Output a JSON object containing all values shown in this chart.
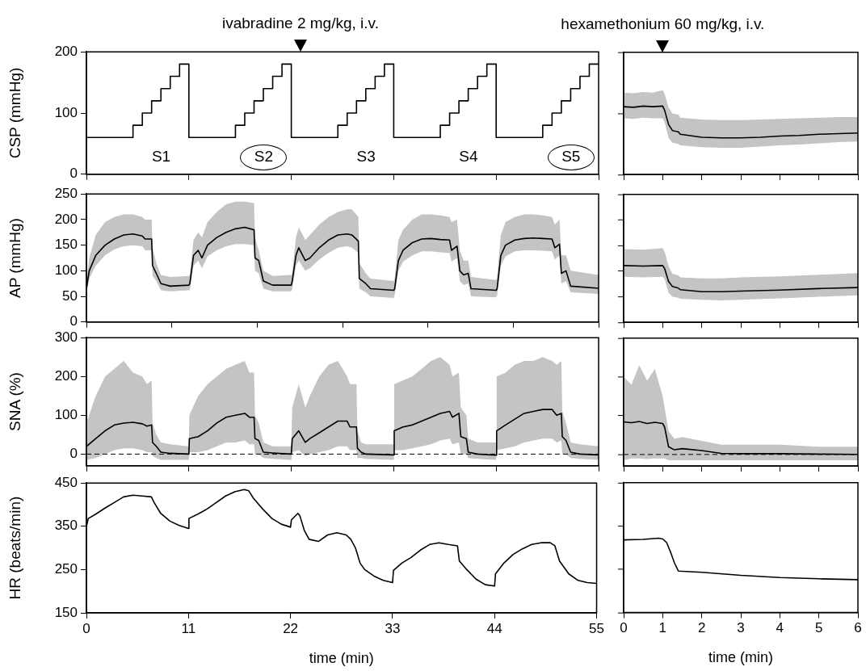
{
  "chart_data": [
    {
      "type": "step",
      "ylabel": "CSP (mmHg)",
      "xlim": [
        0,
        55
      ],
      "xticks": [
        0,
        11,
        22,
        33,
        44,
        55
      ],
      "ylim": [
        0,
        200
      ],
      "yticks": [
        0,
        100,
        200
      ],
      "tick_labels": "y",
      "grid": false,
      "legend": false,
      "marker": "none",
      "x": [
        0,
        5,
        6,
        7,
        8,
        9,
        10,
        11,
        16,
        17,
        18,
        19,
        20,
        21,
        22,
        27,
        28,
        29,
        30,
        31,
        32,
        33,
        38,
        39,
        40,
        41,
        42,
        43,
        44,
        49,
        50,
        51,
        52,
        53,
        54,
        55
      ],
      "series": [
        {
          "color": "#000000",
          "values": [
            60,
            80,
            100,
            120,
            140,
            160,
            180,
            60,
            80,
            100,
            120,
            140,
            160,
            180,
            60,
            80,
            100,
            120,
            140,
            160,
            180,
            60,
            80,
            100,
            120,
            140,
            160,
            180,
            60,
            80,
            100,
            120,
            140,
            160,
            180,
            180
          ]
        }
      ],
      "annotations": [
        "S1",
        "S2",
        "S3",
        "S4",
        "S5",
        "ivabradine 2 mg/kg, i.v."
      ]
    },
    {
      "type": "line",
      "xlim": [
        0,
        6
      ],
      "xticks": [
        0,
        1,
        2,
        3,
        4,
        5,
        6
      ],
      "ylim": [
        0,
        200
      ],
      "yticks": [
        0,
        100,
        200
      ],
      "tick_labels": false,
      "grid": false,
      "legend": false,
      "marker": "none",
      "x": [
        0,
        0.25,
        0.5,
        0.75,
        1,
        1.05,
        1.15,
        1.25,
        1.4,
        1.45,
        2,
        2.5,
        3,
        3.5,
        4,
        4.5,
        5,
        5.5,
        6
      ],
      "series": [
        {
          "color": "#000000",
          "values": [
            111,
            110,
            112,
            111,
            112,
            105,
            82,
            72,
            70,
            66,
            61,
            60,
            60,
            61,
            63,
            64,
            66,
            67,
            68
          ],
          "upper": [
            134,
            133,
            135,
            134,
            138,
            132,
            110,
            100,
            98,
            93,
            90,
            89,
            89,
            90,
            91,
            92,
            93,
            94,
            94
          ],
          "lower": [
            92,
            91,
            93,
            92,
            92,
            85,
            60,
            52,
            50,
            48,
            45,
            44,
            44,
            46,
            48,
            49,
            51,
            53,
            54
          ]
        }
      ],
      "annotations": [
        "hexamethonium 60 mg/kg, i.v."
      ]
    },
    {
      "type": "line",
      "ylabel": "AP (mmHg)",
      "xlim": [
        0,
        55
      ],
      "xticks": [
        0,
        {
          "value": 9.17,
          "label": null
        },
        {
          "value": 18.33,
          "label": null
        },
        {
          "value": 27.5,
          "label": null
        },
        {
          "value": 36.67,
          "label": null
        },
        {
          "value": 45.83,
          "label": null
        },
        55
      ],
      "ylim": [
        0,
        250
      ],
      "yticks": [
        0,
        50,
        100,
        150,
        200,
        250
      ],
      "tick_labels": "y",
      "grid": false,
      "legend": false,
      "marker": "none",
      "x": [
        0,
        0.3,
        1,
        2,
        3,
        4,
        5,
        6,
        6.3,
        7,
        7.1,
        7.5,
        8,
        9,
        11,
        11.1,
        11.5,
        12,
        12.4,
        13,
        14,
        15,
        16,
        17,
        18,
        18.1,
        18.5,
        19,
        20,
        22,
        22.1,
        22.5,
        22.8,
        23.5,
        24,
        25,
        26,
        27,
        28,
        28.5,
        29.2,
        29.3,
        30,
        30.5,
        33,
        33.1,
        33.5,
        34,
        35,
        36,
        37,
        38,
        39,
        39.2,
        39.8,
        40.1,
        40.5,
        41,
        41.3,
        44,
        44.1,
        44.5,
        45,
        46,
        47,
        48,
        49,
        50,
        50.3,
        50.8,
        51,
        51.5,
        52,
        55
      ],
      "series": [
        {
          "color": "#000000",
          "values": [
            65,
            100,
            130,
            150,
            162,
            170,
            172,
            168,
            162,
            162,
            110,
            95,
            75,
            70,
            72,
            75,
            130,
            140,
            125,
            150,
            165,
            175,
            182,
            185,
            180,
            125,
            120,
            80,
            72,
            72,
            80,
            130,
            145,
            120,
            125,
            145,
            160,
            170,
            172,
            170,
            158,
            85,
            75,
            65,
            62,
            65,
            120,
            140,
            155,
            162,
            163,
            161,
            160,
            140,
            148,
            100,
            92,
            95,
            65,
            62,
            65,
            130,
            150,
            160,
            163,
            164,
            163,
            162,
            145,
            152,
            95,
            100,
            70,
            66
          ],
          "upper": [
            80,
            125,
            170,
            195,
            205,
            210,
            210,
            205,
            200,
            200,
            145,
            115,
            92,
            88,
            90,
            92,
            160,
            175,
            165,
            195,
            215,
            230,
            235,
            235,
            232,
            165,
            140,
            100,
            90,
            92,
            95,
            165,
            185,
            160,
            170,
            190,
            205,
            215,
            220,
            220,
            205,
            115,
            95,
            85,
            80,
            85,
            160,
            180,
            200,
            210,
            210,
            208,
            205,
            195,
            200,
            140,
            120,
            120,
            88,
            82,
            88,
            170,
            195,
            205,
            210,
            210,
            208,
            205,
            190,
            200,
            130,
            130,
            100,
            92
          ],
          "lower": [
            55,
            85,
            110,
            130,
            142,
            148,
            150,
            148,
            140,
            140,
            90,
            80,
            62,
            60,
            62,
            62,
            110,
            120,
            105,
            128,
            140,
            148,
            152,
            152,
            150,
            100,
            95,
            65,
            60,
            60,
            65,
            110,
            120,
            100,
            105,
            122,
            135,
            145,
            148,
            145,
            135,
            65,
            58,
            50,
            47,
            52,
            100,
            118,
            130,
            138,
            138,
            136,
            135,
            118,
            125,
            80,
            72,
            75,
            50,
            48,
            52,
            110,
            128,
            138,
            140,
            140,
            139,
            138,
            122,
            130,
            75,
            80,
            58,
            55
          ]
        }
      ]
    },
    {
      "type": "line",
      "xlim": [
        0,
        6
      ],
      "xticks": [
        0,
        1,
        2,
        3,
        4,
        5,
        6
      ],
      "ylim": [
        0,
        250
      ],
      "yticks": [
        0,
        50,
        100,
        150,
        200,
        250
      ],
      "tick_labels": false,
      "grid": false,
      "legend": false,
      "marker": "none",
      "x": [
        0,
        0.5,
        1,
        1.05,
        1.15,
        1.25,
        1.4,
        1.45,
        2,
        2.5,
        3,
        4,
        5,
        6
      ],
      "series": [
        {
          "color": "#000000",
          "values": [
            111,
            110,
            111,
            105,
            80,
            70,
            67,
            64,
            60,
            60,
            61,
            63,
            66,
            68
          ],
          "upper": [
            143,
            142,
            145,
            138,
            110,
            95,
            92,
            88,
            86,
            86,
            88,
            90,
            93,
            96
          ],
          "lower": [
            89,
            88,
            89,
            84,
            58,
            50,
            48,
            46,
            44,
            43,
            44,
            47,
            50,
            53
          ]
        }
      ]
    },
    {
      "type": "line",
      "ylabel": "SNA (%)",
      "xlim": [
        0,
        55
      ],
      "xticks": [
        0,
        11,
        22,
        33,
        44,
        55
      ],
      "ylim": [
        -30,
        300
      ],
      "yticks": [
        0,
        100,
        200,
        300
      ],
      "tick_labels": "y",
      "grid": false,
      "legend": false,
      "marker": "none",
      "ref_lines": [
        {
          "axis": "y",
          "value": 0,
          "color": "#000000",
          "line_style": "dashed"
        }
      ],
      "x": [
        0,
        1,
        2,
        3,
        4,
        5,
        6,
        6.5,
        7,
        7.1,
        7.5,
        8,
        9,
        11,
        11.05,
        12,
        13,
        14,
        15,
        16,
        17,
        17.5,
        18,
        18.1,
        18.5,
        19,
        20,
        22,
        22.1,
        22.8,
        23.5,
        24,
        25,
        26,
        27,
        28,
        28.3,
        29,
        29.1,
        29.5,
        30,
        33,
        33.05,
        34,
        35,
        36,
        37,
        38,
        39,
        39.3,
        40,
        40.2,
        40.8,
        41,
        42,
        44,
        44.05,
        45,
        46,
        47,
        48,
        49,
        50,
        50.5,
        51,
        51.1,
        51.5,
        52,
        53,
        55
      ],
      "series": [
        {
          "color": "#000000",
          "values": [
            20,
            40,
            60,
            75,
            80,
            82,
            78,
            72,
            75,
            30,
            20,
            5,
            2,
            0,
            40,
            45,
            60,
            80,
            95,
            100,
            105,
            95,
            95,
            40,
            35,
            5,
            3,
            0,
            40,
            60,
            30,
            40,
            55,
            70,
            85,
            85,
            70,
            70,
            15,
            5,
            0,
            -2,
            60,
            70,
            75,
            85,
            95,
            105,
            110,
            95,
            105,
            45,
            40,
            5,
            0,
            -3,
            60,
            75,
            90,
            105,
            110,
            115,
            115,
            100,
            105,
            45,
            35,
            5,
            0,
            -2
          ],
          "upper": [
            80,
            150,
            200,
            220,
            240,
            210,
            200,
            180,
            190,
            80,
            50,
            30,
            25,
            20,
            100,
            150,
            180,
            200,
            220,
            230,
            240,
            210,
            210,
            100,
            80,
            30,
            20,
            20,
            120,
            180,
            120,
            150,
            200,
            230,
            240,
            200,
            180,
            180,
            60,
            30,
            25,
            25,
            180,
            190,
            200,
            220,
            240,
            250,
            230,
            200,
            210,
            120,
            100,
            40,
            30,
            30,
            200,
            210,
            230,
            240,
            240,
            250,
            240,
            230,
            240,
            110,
            80,
            30,
            25,
            20
          ],
          "lower": [
            -15,
            -10,
            0,
            10,
            15,
            15,
            10,
            5,
            5,
            -5,
            -10,
            -15,
            -15,
            -15,
            5,
            5,
            10,
            20,
            30,
            30,
            35,
            25,
            25,
            0,
            0,
            -10,
            -12,
            -15,
            5,
            10,
            -5,
            0,
            5,
            10,
            20,
            20,
            10,
            10,
            -10,
            -10,
            -12,
            -15,
            10,
            10,
            15,
            20,
            25,
            35,
            40,
            25,
            30,
            0,
            0,
            -10,
            -12,
            -15,
            10,
            15,
            20,
            30,
            35,
            40,
            40,
            30,
            35,
            0,
            0,
            -10,
            -12,
            -15
          ]
        }
      ]
    },
    {
      "type": "line",
      "xlim": [
        0,
        6
      ],
      "xticks": [
        0,
        1,
        2,
        3,
        4,
        5,
        6
      ],
      "ylim": [
        -30,
        300
      ],
      "yticks": [
        0,
        100,
        200,
        300
      ],
      "tick_labels": false,
      "grid": false,
      "legend": false,
      "marker": "none",
      "ref_lines": [
        {
          "axis": "y",
          "value": 0,
          "color": "#000000",
          "line_style": "dashed"
        }
      ],
      "x": [
        0,
        0.2,
        0.4,
        0.6,
        0.8,
        1,
        1.05,
        1.15,
        1.3,
        1.5,
        2,
        2.5,
        3,
        4,
        5,
        6
      ],
      "series": [
        {
          "color": "#000000",
          "values": [
            84,
            82,
            85,
            80,
            83,
            80,
            70,
            20,
            12,
            15,
            10,
            3,
            2,
            2,
            1,
            0
          ],
          "upper": [
            200,
            180,
            230,
            190,
            220,
            150,
            120,
            60,
            40,
            45,
            35,
            25,
            25,
            25,
            20,
            20
          ],
          "lower": [
            -15,
            -10,
            -10,
            -12,
            -10,
            -10,
            -10,
            -15,
            -15,
            -15,
            -15,
            -15,
            -15,
            -15,
            -15,
            -15
          ]
        }
      ]
    },
    {
      "type": "line",
      "xlabel": "time (min)",
      "ylabel": "HR (beats/min)",
      "xlim": [
        0,
        55
      ],
      "xticks": [
        0,
        11,
        22,
        33,
        44,
        55
      ],
      "ylim": [
        150,
        450
      ],
      "yticks": [
        150,
        250,
        350,
        450
      ],
      "grid": false,
      "legend": false,
      "marker": "none",
      "x": [
        0,
        0.2,
        1,
        2,
        3,
        4,
        5,
        6,
        7,
        7.3,
        8,
        9,
        10,
        11,
        11.05,
        12,
        13,
        14,
        15,
        16,
        17,
        17.5,
        18,
        19,
        20,
        21,
        22,
        22.1,
        22.8,
        23,
        23.5,
        24,
        25,
        26,
        27,
        28,
        28.5,
        29,
        29.5,
        30,
        31,
        32,
        33,
        33.1,
        34,
        35,
        36,
        37,
        38,
        39,
        40,
        40.2,
        41,
        42,
        43,
        44,
        44.1,
        45,
        46,
        47,
        48,
        49,
        50,
        50.5,
        51,
        52,
        53,
        54,
        55
      ],
      "series": [
        {
          "color": "#000000",
          "values": [
            350,
            368,
            378,
            392,
            405,
            418,
            422,
            420,
            418,
            405,
            380,
            362,
            352,
            345,
            368,
            378,
            390,
            405,
            420,
            430,
            435,
            432,
            415,
            390,
            368,
            355,
            348,
            365,
            380,
            375,
            340,
            320,
            315,
            330,
            335,
            330,
            320,
            300,
            265,
            250,
            235,
            225,
            220,
            248,
            265,
            278,
            295,
            308,
            312,
            308,
            305,
            270,
            250,
            228,
            215,
            212,
            240,
            265,
            285,
            298,
            308,
            312,
            312,
            305,
            270,
            240,
            225,
            220,
            218
          ]
        }
      ]
    },
    {
      "type": "line",
      "xlabel": "time (min)",
      "xlim": [
        0,
        6
      ],
      "xticks": [
        0,
        1,
        2,
        3,
        4,
        5,
        6
      ],
      "ylim": [
        150,
        450
      ],
      "yticks": [
        150,
        250,
        350,
        450
      ],
      "tick_labels": "x",
      "grid": false,
      "legend": false,
      "marker": "none",
      "x": [
        0,
        0.5,
        0.9,
        1,
        1.1,
        1.2,
        1.3,
        1.4,
        2,
        3,
        4,
        5,
        6
      ],
      "series": [
        {
          "color": "#000000",
          "values": [
            318,
            319,
            322,
            320,
            312,
            290,
            265,
            246,
            243,
            236,
            231,
            228,
            226
          ]
        }
      ]
    }
  ]
}
